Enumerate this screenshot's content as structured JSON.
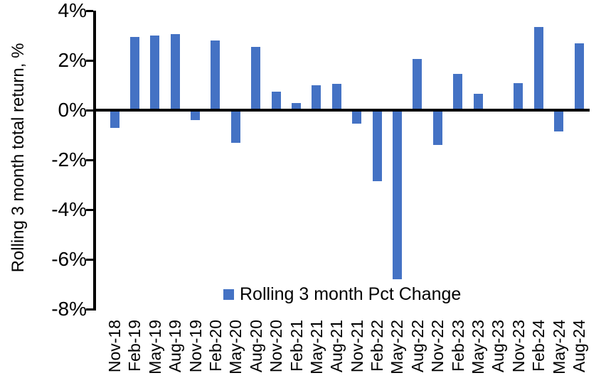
{
  "chart_data": {
    "type": "bar",
    "title": "",
    "xlabel": "",
    "ylabel": "Rolling 3 month total return, %",
    "legend_label": "Rolling 3 month Pct Change",
    "legend_position": "bottom-center",
    "categories": [
      "Nov-18",
      "Feb-19",
      "May-19",
      "Aug-19",
      "Nov-19",
      "Feb-20",
      "May-20",
      "Aug-20",
      "Nov-20",
      "Feb-21",
      "May-21",
      "Aug-21",
      "Nov-21",
      "Feb-22",
      "May-22",
      "Aug-22",
      "Nov-22",
      "Feb-23",
      "May-23",
      "Aug-23",
      "Nov-23",
      "Feb-24",
      "May-24",
      "Aug-24"
    ],
    "values": [
      -0.7,
      2.95,
      3.0,
      3.05,
      -0.4,
      2.8,
      -1.3,
      2.55,
      0.75,
      0.3,
      1.0,
      1.05,
      -0.55,
      -2.85,
      -6.8,
      2.05,
      -1.4,
      1.45,
      0.65,
      0.0,
      1.1,
      3.35,
      -0.85,
      2.7
    ],
    "ylim": [
      -8,
      4
    ],
    "yticks": [
      4,
      2,
      0,
      -2,
      -4,
      -6,
      -8
    ],
    "ytick_suffix": "%",
    "grid": false,
    "bar_color": "#4472C4",
    "axis_color": "#000000",
    "text_color": "#000000"
  }
}
